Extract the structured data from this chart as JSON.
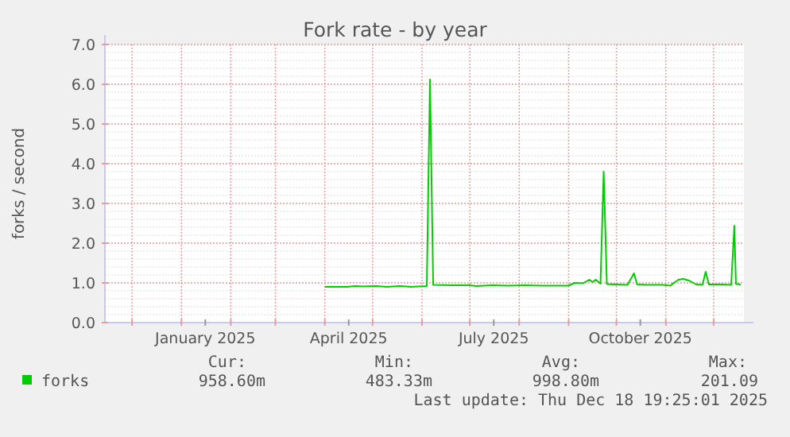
{
  "chart_data": {
    "type": "line",
    "title": "Fork rate - by year",
    "ylabel": "forks / second",
    "x": [
      "2025-04-01",
      "2025-04-15",
      "2025-04-20",
      "2025-04-25",
      "2025-05-03",
      "2025-05-10",
      "2025-05-18",
      "2025-05-25",
      "2025-06-04",
      "2025-06-06",
      "2025-06-08",
      "2025-06-20",
      "2025-07-01",
      "2025-07-05",
      "2025-07-15",
      "2025-07-25",
      "2025-08-05",
      "2025-08-15",
      "2025-08-25",
      "2025-09-01",
      "2025-09-05",
      "2025-09-10",
      "2025-09-14",
      "2025-09-16",
      "2025-09-18",
      "2025-09-21",
      "2025-09-23",
      "2025-09-25",
      "2025-09-30",
      "2025-10-08",
      "2025-10-12",
      "2025-10-14",
      "2025-10-20",
      "2025-10-30",
      "2025-11-04",
      "2025-11-06",
      "2025-11-09",
      "2025-11-12",
      "2025-11-16",
      "2025-11-20",
      "2025-11-24",
      "2025-11-26",
      "2025-11-28",
      "2025-12-05",
      "2025-12-12",
      "2025-12-14",
      "2025-12-15",
      "2025-12-18"
    ],
    "series": [
      {
        "name": "forks",
        "color": "#00cc00",
        "values": [
          0.9,
          0.9,
          0.92,
          0.91,
          0.92,
          0.9,
          0.92,
          0.9,
          0.92,
          6.12,
          0.95,
          0.94,
          0.94,
          0.92,
          0.94,
          0.93,
          0.94,
          0.93,
          0.93,
          0.93,
          1.0,
          0.99,
          1.08,
          1.02,
          1.08,
          0.98,
          3.8,
          0.97,
          0.96,
          0.95,
          1.24,
          0.96,
          0.95,
          0.95,
          0.93,
          1.0,
          1.08,
          1.1,
          1.05,
          0.96,
          0.95,
          1.28,
          0.96,
          0.96,
          0.95,
          2.44,
          0.97,
          0.96
        ]
      }
    ],
    "xlim": [
      "2024-11-14",
      "2025-12-20"
    ],
    "xticks": [
      {
        "value": "2024-12-01",
        "label": null
      },
      {
        "value": "2025-01-01",
        "label": null
      },
      {
        "value": "2025-01-16",
        "label": "January 2025"
      },
      {
        "value": "2025-02-01",
        "label": null
      },
      {
        "value": "2025-03-01",
        "label": null
      },
      {
        "value": "2025-04-01",
        "label": null
      },
      {
        "value": "2025-04-16",
        "label": "April 2025"
      },
      {
        "value": "2025-05-01",
        "label": null
      },
      {
        "value": "2025-06-01",
        "label": null
      },
      {
        "value": "2025-07-01",
        "label": null
      },
      {
        "value": "2025-07-16",
        "label": "July 2025"
      },
      {
        "value": "2025-08-01",
        "label": null
      },
      {
        "value": "2025-09-01",
        "label": null
      },
      {
        "value": "2025-10-01",
        "label": null
      },
      {
        "value": "2025-10-16",
        "label": "October 2025"
      },
      {
        "value": "2025-11-01",
        "label": null
      },
      {
        "value": "2025-12-01",
        "label": null
      }
    ],
    "ylim": [
      0,
      7
    ],
    "yticks": [
      {
        "value": 0,
        "label": "0.0"
      },
      {
        "value": 1,
        "label": "1.0"
      },
      {
        "value": 2,
        "label": "2.0"
      },
      {
        "value": 3,
        "label": "3.0"
      },
      {
        "value": 4,
        "label": "4.0"
      },
      {
        "value": 5,
        "label": "5.0"
      },
      {
        "value": 6,
        "label": "6.0"
      },
      {
        "value": 7,
        "label": "7.0"
      }
    ],
    "grid": true,
    "legend": "bottom",
    "marker": "none",
    "line_style": "solid",
    "annotations": [
      "Cur:",
      "Min:",
      "Avg:",
      "Max:",
      "958.60m",
      "483.33m",
      "998.80m",
      "201.09",
      "Last update: Thu Dec 18 19:25:01 2025"
    ]
  }
}
